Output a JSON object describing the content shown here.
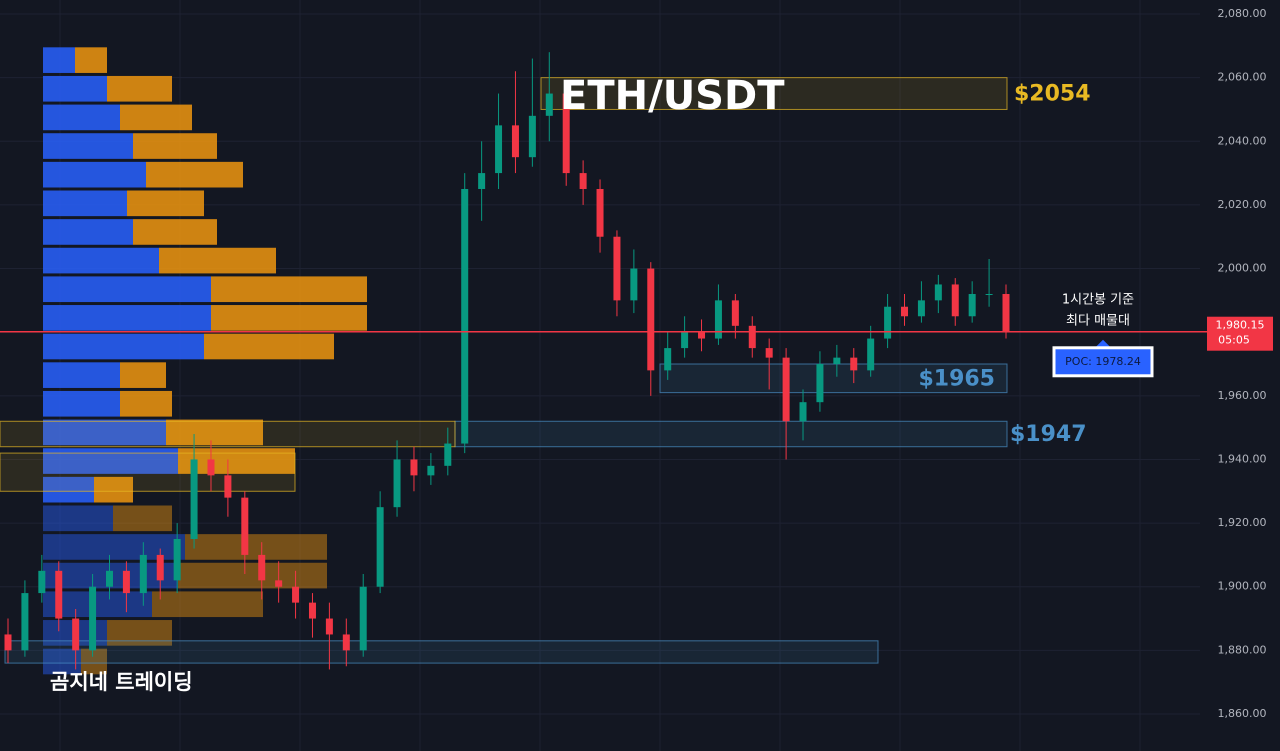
{
  "chart_data": {
    "type": "candlestick",
    "title": "ETH/USDT",
    "watermark": "곰지네 트레이딩",
    "ylim": [
      1860,
      2080
    ],
    "yticks": [
      {
        "value": 2080,
        "label": "2,080.00"
      },
      {
        "value": 2060,
        "label": "2,060.00"
      },
      {
        "value": 2040,
        "label": "2,040.00"
      },
      {
        "value": 2020,
        "label": "2,020.00"
      },
      {
        "value": 2000,
        "label": "2,000.00"
      },
      {
        "value": 1980,
        "label": "1,980.00"
      },
      {
        "value": 1960,
        "label": "1,960.00"
      },
      {
        "value": 1940,
        "label": "1,940.00"
      },
      {
        "value": 1920,
        "label": "1,920.00"
      },
      {
        "value": 1900,
        "label": "1,900.00"
      },
      {
        "value": 1880,
        "label": "1,880.00"
      },
      {
        "value": 1860,
        "label": "1,860.00"
      }
    ],
    "grid": true,
    "up_color": "#089981",
    "down_color": "#f23645",
    "open": [
      1885,
      1880,
      1898,
      1905,
      1890,
      1880,
      1900,
      1905,
      1898,
      1910,
      1902,
      1915,
      1940,
      1935,
      1928,
      1910,
      1902,
      1900,
      1895,
      1890,
      1885,
      1880,
      1900,
      1925,
      1940,
      1935,
      1938,
      1945,
      2025,
      2030,
      2045,
      2035,
      2048,
      2055,
      2030,
      2025,
      2010,
      1990,
      2000,
      1968,
      1975,
      1980,
      1978,
      1990,
      1982,
      1975,
      1972,
      1952,
      1958,
      1970,
      1972,
      1968,
      1978,
      1988,
      1985,
      1990,
      1995,
      1985,
      1992,
      1992
    ],
    "high": [
      1890,
      1902,
      1910,
      1908,
      1893,
      1904,
      1910,
      1908,
      1914,
      1912,
      1920,
      1948,
      1946,
      1940,
      1930,
      1914,
      1908,
      1905,
      1898,
      1895,
      1890,
      1904,
      1930,
      1946,
      1944,
      1942,
      1950,
      2030,
      2040,
      2055,
      2062,
      2066,
      2068,
      2058,
      2034,
      2028,
      2012,
      2006,
      2002,
      1980,
      1985,
      1984,
      1995,
      1992,
      1985,
      1978,
      1975,
      1962,
      1974,
      1976,
      1975,
      1982,
      1992,
      1992,
      1996,
      1998,
      1997,
      1996,
      2003,
      1995
    ],
    "low": [
      1876,
      1878,
      1895,
      1886,
      1874,
      1878,
      1896,
      1892,
      1894,
      1896,
      1898,
      1912,
      1930,
      1922,
      1904,
      1896,
      1895,
      1890,
      1884,
      1874,
      1875,
      1878,
      1898,
      1922,
      1930,
      1932,
      1935,
      1942,
      2015,
      2025,
      2030,
      2032,
      2040,
      2026,
      2020,
      2005,
      1985,
      1986,
      1960,
      1965,
      1972,
      1974,
      1976,
      1978,
      1972,
      1962,
      1940,
      1946,
      1955,
      1966,
      1964,
      1966,
      1975,
      1982,
      1983,
      1986,
      1982,
      1983,
      1988,
      1978
    ],
    "close": [
      1880,
      1898,
      1905,
      1890,
      1880,
      1900,
      1905,
      1898,
      1910,
      1902,
      1915,
      1940,
      1935,
      1928,
      1910,
      1902,
      1900,
      1895,
      1890,
      1885,
      1880,
      1900,
      1925,
      1940,
      1935,
      1938,
      1945,
      2025,
      2030,
      2045,
      2035,
      2048,
      2055,
      2030,
      2025,
      2010,
      1990,
      2000,
      1968,
      1975,
      1980,
      1978,
      1990,
      1982,
      1975,
      1972,
      1952,
      1958,
      1970,
      1972,
      1968,
      1978,
      1988,
      1985,
      1990,
      1995,
      1985,
      1992,
      1992,
      1980.15
    ],
    "price_tag": {
      "value": 1980.15,
      "label": "1,980.15",
      "time": "05:05",
      "color": "#f23645"
    },
    "volume_profile": {
      "bins": [
        2070,
        2061,
        2052,
        2043,
        2034,
        2025,
        2016,
        2007,
        1998,
        1989,
        1980,
        1971,
        1962,
        1953,
        1944,
        1935,
        1926,
        1917,
        1908,
        1899,
        1890,
        1881,
        1872
      ],
      "series": [
        {
          "color": "#2962ff",
          "values": [
            32,
            64,
            77,
            90,
            103,
            84,
            90,
            116,
            168,
            168,
            161,
            77,
            77,
            123,
            135,
            51,
            70,
            142,
            135,
            109,
            64,
            38
          ]
        },
        {
          "color": "#f0960f",
          "values": [
            32,
            65,
            72,
            84,
            97,
            77,
            84,
            117,
            156,
            156,
            130,
            46,
            52,
            97,
            117,
            39,
            59,
            142,
            149,
            111,
            65,
            26
          ]
        }
      ]
    },
    "zones": [
      {
        "low": 2050,
        "high": 2060,
        "color": "#e8b923",
        "label": "$2054"
      },
      {
        "low": 1961,
        "high": 1970,
        "color": "#4a90c8",
        "label": "$1965"
      },
      {
        "low": 1944,
        "high": 1952,
        "color": "#4a90c8",
        "label": "$1947"
      },
      {
        "low": 1944,
        "high": 1952,
        "color": "#e8b923"
      },
      {
        "low": 1930,
        "high": 1942,
        "color": "#e8b923"
      },
      {
        "low": 1876,
        "high": 1883,
        "color": "#4a90c8"
      }
    ],
    "annotation": [
      "1시간봉 기준",
      "최다 매물대"
    ],
    "poc": {
      "value": 1978.24,
      "label": "POC: 1978.24"
    }
  }
}
